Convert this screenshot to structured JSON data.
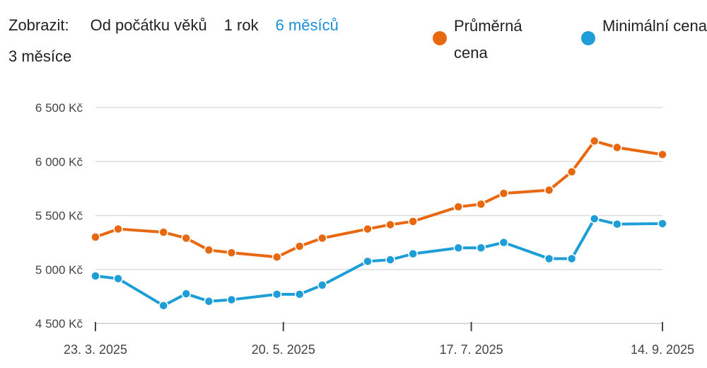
{
  "filter": {
    "label": "Zobrazit:",
    "options": [
      "Od počátku věků",
      "1 rok",
      "6 měsíců",
      "3 měsíce"
    ],
    "selected": "6 měsíců"
  },
  "colors": {
    "series_avg": "#e8680f",
    "series_min": "#1e9ed6",
    "grid": "#dddddd",
    "axis": "#444444",
    "active": "#1a8fd8"
  },
  "chart_data": {
    "type": "line",
    "y_ticks": [
      "4 500 Kč",
      "5 000 Kč",
      "5 500 Kč",
      "6 000 Kč",
      "6 500 Kč"
    ],
    "x_ticks": [
      "23. 3. 2025",
      "20. 5. 2025",
      "17. 7. 2025",
      "14. 9. 2025"
    ],
    "ylim": [
      4500,
      6500
    ],
    "xlim": [
      "2025-03-23",
      "2025-09-14"
    ],
    "grid": true,
    "legend": "top-right",
    "series": [
      {
        "name": "Průměrná cena",
        "color": "#e8680f",
        "x": [
          "2025-03-23",
          "2025-03-30",
          "2025-04-13",
          "2025-04-20",
          "2025-04-27",
          "2025-05-04",
          "2025-05-18",
          "2025-05-25",
          "2025-06-01",
          "2025-06-15",
          "2025-06-22",
          "2025-06-29",
          "2025-07-13",
          "2025-07-20",
          "2025-07-27",
          "2025-08-10",
          "2025-08-17",
          "2025-08-24",
          "2025-08-31",
          "2025-09-14"
        ],
        "values": [
          5300,
          5375,
          5345,
          5290,
          5180,
          5155,
          5115,
          5215,
          5290,
          5375,
          5415,
          5445,
          5580,
          5605,
          5705,
          5735,
          5905,
          6190,
          6130,
          6065
        ]
      },
      {
        "name": "Minimální cena",
        "color": "#1e9ed6",
        "x": [
          "2025-03-23",
          "2025-03-30",
          "2025-04-13",
          "2025-04-20",
          "2025-04-27",
          "2025-05-04",
          "2025-05-18",
          "2025-05-25",
          "2025-06-01",
          "2025-06-15",
          "2025-06-22",
          "2025-06-29",
          "2025-07-13",
          "2025-07-20",
          "2025-07-27",
          "2025-08-10",
          "2025-08-17",
          "2025-08-24",
          "2025-08-31",
          "2025-09-14"
        ],
        "values": [
          4940,
          4915,
          4665,
          4775,
          4705,
          4720,
          4770,
          4770,
          4855,
          5075,
          5090,
          5145,
          5200,
          5200,
          5250,
          5100,
          5100,
          5470,
          5420,
          5425
        ]
      }
    ]
  }
}
